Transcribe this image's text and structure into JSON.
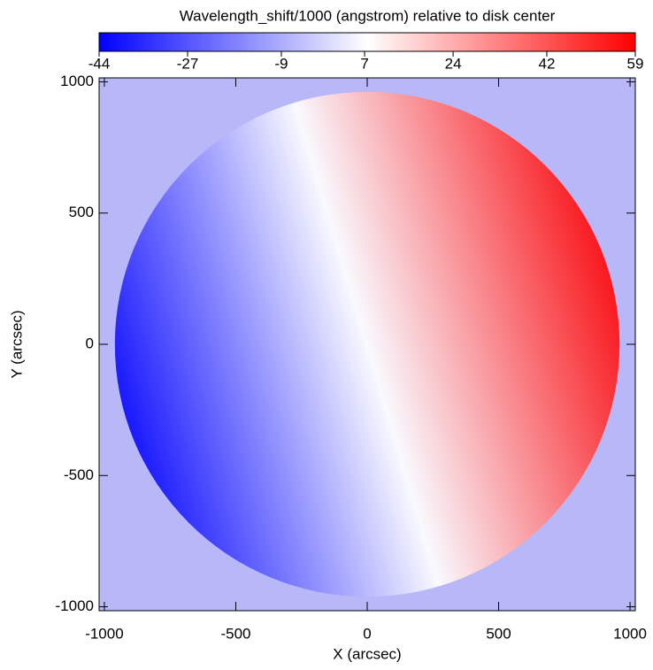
{
  "chart_data": {
    "type": "image",
    "title": "Wavelength_shift/1000 (angstrom) relative to disk center",
    "xlabel": "X (arcsec)",
    "ylabel": "Y (arcsec)",
    "xlim": [
      -1020,
      1020
    ],
    "ylim": [
      -1015,
      1015
    ],
    "xticks": [
      -1000,
      -500,
      0,
      500,
      1000
    ],
    "yticks": [
      -1000,
      -500,
      0,
      500,
      1000
    ],
    "clim": [
      -44,
      59
    ],
    "cticks": [
      -44,
      -27,
      -9,
      7,
      24,
      42,
      59
    ],
    "colormap": [
      "#0000ff",
      "#ffffff",
      "#ff0000"
    ],
    "disk_radius": 960,
    "background": "#b8b8f8"
  }
}
